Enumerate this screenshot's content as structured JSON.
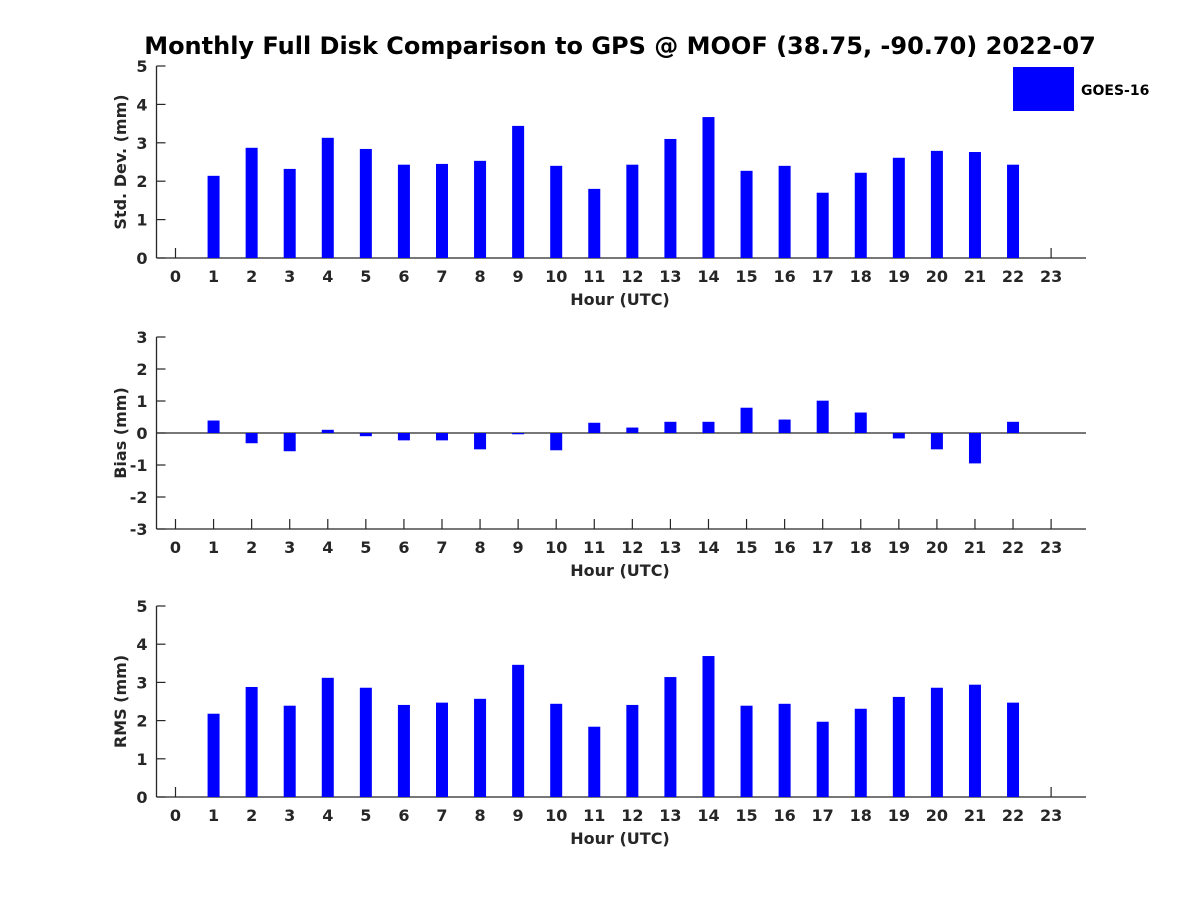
{
  "figure": {
    "title": "Monthly Full Disk Comparison to GPS @ MOOF (38.75, -90.70) 2022-07"
  },
  "legend": {
    "placement": "top-right",
    "entries": [
      {
        "label": "GOES-16",
        "color": "#0000ff"
      }
    ]
  },
  "chart_data": [
    {
      "type": "bar",
      "id": "std",
      "title": "Monthly Full Disk Comparison to GPS @ MOOF (38.75, -90.70) 2022-07",
      "xlabel": "Hour (UTC)",
      "ylabel": "Std. Dev. (mm)",
      "ylim": [
        0,
        5
      ],
      "yticks": [
        0,
        1,
        2,
        3,
        4,
        5
      ],
      "xlim": [
        -0.5,
        23.9
      ],
      "categories": [
        0,
        1,
        2,
        3,
        4,
        5,
        6,
        7,
        8,
        9,
        10,
        11,
        12,
        13,
        14,
        15,
        16,
        17,
        18,
        19,
        20,
        21,
        22,
        23
      ],
      "series": [
        {
          "name": "GOES-16",
          "color": "#0000ff",
          "values": [
            null,
            2.14,
            2.87,
            2.32,
            3.13,
            2.84,
            2.43,
            2.45,
            2.53,
            3.44,
            2.4,
            1.8,
            2.43,
            3.1,
            3.67,
            2.27,
            2.4,
            1.7,
            2.22,
            2.61,
            2.79,
            2.76,
            2.43,
            null
          ]
        }
      ],
      "grid": false,
      "legend": "top-right"
    },
    {
      "type": "bar",
      "id": "bias",
      "xlabel": "Hour (UTC)",
      "ylabel": "Bias (mm)",
      "ylim": [
        -3,
        3
      ],
      "yticks": [
        -3,
        -2,
        -1,
        0,
        1,
        2,
        3
      ],
      "xlim": [
        -0.5,
        23.9
      ],
      "categories": [
        0,
        1,
        2,
        3,
        4,
        5,
        6,
        7,
        8,
        9,
        10,
        11,
        12,
        13,
        14,
        15,
        16,
        17,
        18,
        19,
        20,
        21,
        22,
        23
      ],
      "series": [
        {
          "name": "GOES-16",
          "color": "#0000ff",
          "values": [
            null,
            0.39,
            -0.32,
            -0.57,
            0.1,
            -0.1,
            -0.23,
            -0.23,
            -0.51,
            -0.04,
            -0.54,
            0.32,
            0.17,
            0.35,
            0.35,
            0.79,
            0.42,
            1.01,
            0.64,
            -0.17,
            -0.51,
            -0.95,
            0.35,
            null
          ]
        }
      ],
      "grid": false
    },
    {
      "type": "bar",
      "id": "rms",
      "xlabel": "Hour (UTC)",
      "ylabel": "RMS (mm)",
      "ylim": [
        0,
        5
      ],
      "yticks": [
        0,
        1,
        2,
        3,
        4,
        5
      ],
      "xlim": [
        -0.5,
        23.9
      ],
      "categories": [
        0,
        1,
        2,
        3,
        4,
        5,
        6,
        7,
        8,
        9,
        10,
        11,
        12,
        13,
        14,
        15,
        16,
        17,
        18,
        19,
        20,
        21,
        22,
        23
      ],
      "series": [
        {
          "name": "GOES-16",
          "color": "#0000ff",
          "values": [
            null,
            2.18,
            2.88,
            2.39,
            3.12,
            2.86,
            2.41,
            2.47,
            2.57,
            3.46,
            2.44,
            1.84,
            2.41,
            3.14,
            3.69,
            2.39,
            2.44,
            1.97,
            2.31,
            2.62,
            2.86,
            2.94,
            2.47,
            null
          ]
        }
      ],
      "grid": false
    }
  ]
}
